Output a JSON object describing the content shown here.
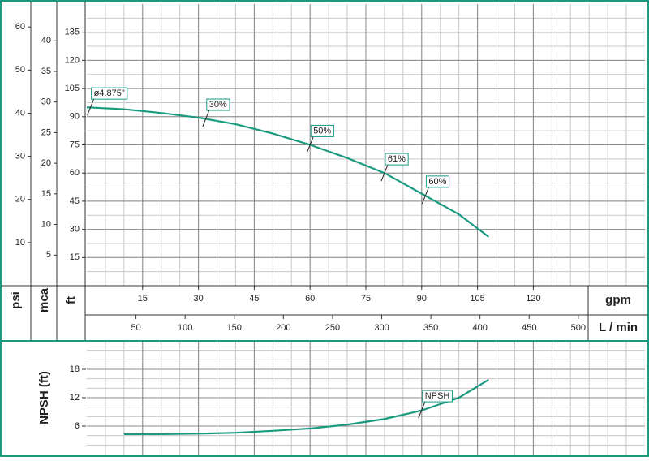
{
  "chart_data": [
    {
      "type": "line",
      "xlabel": "gpm",
      "ylabel": "ft",
      "color": "#1a9a80",
      "grid": true,
      "xlim": [
        0,
        150
      ],
      "xticks": [
        15,
        30,
        45,
        60,
        75,
        90,
        105,
        120
      ],
      "x2label": "L / min",
      "x2lim": [
        0,
        567.8
      ],
      "x2ticks": [
        50,
        100,
        150,
        200,
        250,
        300,
        350,
        400,
        450,
        500
      ],
      "ylim": [
        0,
        150
      ],
      "yticks": [
        15,
        30,
        45,
        60,
        75,
        90,
        105,
        120,
        135
      ],
      "psi": {
        "label": "psi",
        "lim": [
          0,
          65.3
        ],
        "ticks": [
          10,
          20,
          30,
          40,
          50,
          60
        ]
      },
      "mca": {
        "label": "mca",
        "lim": [
          0,
          46
        ],
        "ticks": [
          5,
          10,
          15,
          20,
          25,
          30,
          35,
          40
        ]
      },
      "x": [
        0,
        10,
        20,
        30,
        40,
        50,
        60,
        70,
        80,
        90,
        100,
        108
      ],
      "values": [
        95,
        94,
        92,
        89.5,
        86,
        81,
        75,
        68,
        60,
        49,
        38,
        26
      ],
      "annotations": [
        {
          "text": "ø4.875\"",
          "x": 1,
          "y": 95
        },
        {
          "text": "30%",
          "x": 32,
          "y": 89
        },
        {
          "text": "50%",
          "x": 60,
          "y": 75
        },
        {
          "text": "61%",
          "x": 80,
          "y": 60
        },
        {
          "text": "60%",
          "x": 91,
          "y": 48
        }
      ]
    },
    {
      "type": "line",
      "ylabel": "NPSH (ft)",
      "color": "#1a9a80",
      "grid": true,
      "xlim": [
        0,
        150
      ],
      "xticks": [
        15,
        30,
        45,
        60,
        75,
        90,
        105,
        120
      ],
      "ylim": [
        0,
        24
      ],
      "yticks": [
        6,
        12,
        18
      ],
      "x": [
        10,
        20,
        30,
        40,
        50,
        60,
        70,
        80,
        90,
        100,
        108
      ],
      "values": [
        4.3,
        4.3,
        4.4,
        4.6,
        5.0,
        5.5,
        6.3,
        7.5,
        9.3,
        12,
        15.8
      ],
      "annotations": [
        {
          "text": "NPSH",
          "x": 90,
          "y": 9.4
        }
      ]
    }
  ]
}
